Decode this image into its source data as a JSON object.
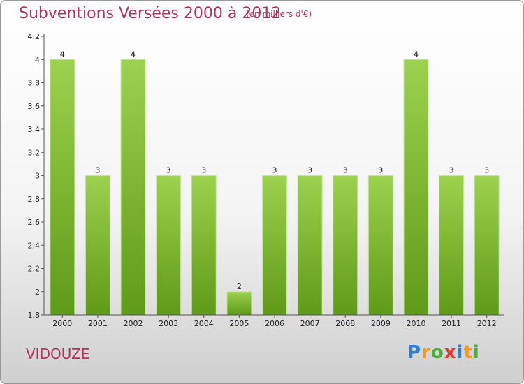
{
  "header": {
    "title": "Subventions Versées 2000 à 2012",
    "subtitle": "(en milliers d'€)"
  },
  "footer": {
    "commune": "VIDOUZE",
    "logo_letters": [
      "P",
      "r",
      "o",
      "x",
      "i",
      "t",
      "i"
    ]
  },
  "colors": {
    "title": "#b5305f",
    "bar_top": "#9dd14f",
    "bar_bottom": "#5f9a18"
  },
  "chart_data": {
    "type": "bar",
    "title": "Subventions Versées 2000 à 2012",
    "subtitle": "(en milliers d'€)",
    "xlabel": "",
    "ylabel": "",
    "categories": [
      "2000",
      "2001",
      "2002",
      "2003",
      "2004",
      "2005",
      "2006",
      "2007",
      "2008",
      "2009",
      "2010",
      "2011",
      "2012"
    ],
    "values": [
      4,
      3,
      4,
      3,
      3,
      2,
      3,
      3,
      3,
      3,
      4,
      3,
      3
    ],
    "ylim": [
      1.8,
      4.2
    ],
    "yticks": [
      "1.8",
      "2",
      "2.2",
      "2.4",
      "2.6",
      "2.8",
      "3",
      "3.2",
      "3.4",
      "3.6",
      "3.8",
      "4",
      "4.2"
    ],
    "grid": false,
    "legend": "none"
  }
}
